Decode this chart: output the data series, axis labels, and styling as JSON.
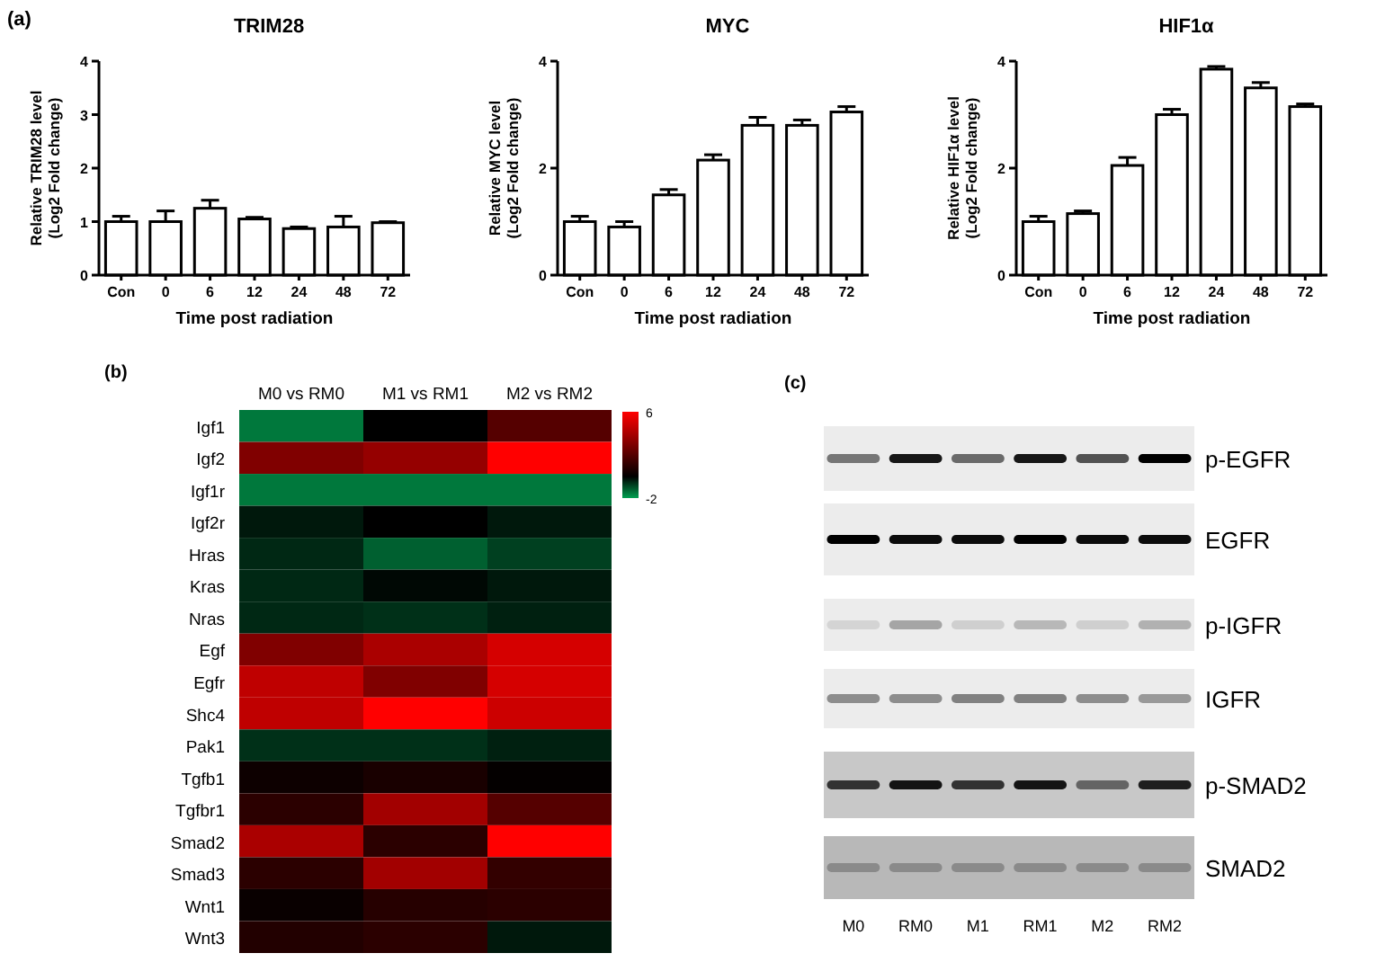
{
  "chart_data": [
    {
      "type": "bar",
      "title": "TRIM28",
      "xlabel": "Time post radiation",
      "ylabel": "Relative TRIM28 level\n(Log2 Fold change)",
      "annotations": [
        "(a)"
      ],
      "categories": [
        "Con",
        "0",
        "6",
        "12",
        "24",
        "48",
        "72"
      ],
      "values": [
        1.0,
        1.0,
        1.25,
        1.05,
        0.87,
        0.9,
        0.98
      ],
      "errors": [
        0.1,
        0.2,
        0.15,
        0.03,
        0.03,
        0.2,
        0.02
      ],
      "color": "#ffffff",
      "ylim": [
        0,
        4
      ],
      "yticks": [
        0,
        1,
        2,
        3,
        4
      ],
      "grid": false
    },
    {
      "type": "bar",
      "title": "MYC",
      "xlabel": "Time post radiation",
      "ylabel": "Relative MYC level\n(Log2 Fold change)",
      "categories": [
        "Con",
        "0",
        "6",
        "12",
        "24",
        "48",
        "72"
      ],
      "values": [
        1.0,
        0.9,
        1.5,
        2.15,
        2.8,
        2.8,
        3.05
      ],
      "errors": [
        0.1,
        0.1,
        0.1,
        0.1,
        0.15,
        0.1,
        0.1
      ],
      "color": "#ffffff",
      "ylim": [
        0,
        4
      ],
      "yticks": [
        0,
        2,
        4
      ],
      "grid": false
    },
    {
      "type": "bar",
      "title": "HIF1α",
      "xlabel": "Time post radiation",
      "ylabel": "Relative HIF1α level\n(Log2 Fold change)",
      "categories": [
        "Con",
        "0",
        "6",
        "12",
        "24",
        "48",
        "72"
      ],
      "values": [
        1.0,
        1.15,
        2.05,
        3.0,
        3.85,
        3.5,
        3.15
      ],
      "errors": [
        0.1,
        0.05,
        0.15,
        0.1,
        0.05,
        0.1,
        0.05
      ],
      "color": "#ffffff",
      "ylim": [
        0,
        4
      ],
      "yticks": [
        0,
        2,
        4
      ],
      "grid": false
    },
    {
      "type": "heatmap",
      "annotations": [
        "(b)"
      ],
      "categories": [
        "M0 vs RM0",
        "M1 vs RM1",
        "M2 vs RM2"
      ],
      "y_categories": [
        "Igf1",
        "Igf2",
        "Igf1r",
        "Igf2r",
        "Hras",
        "Kras",
        "Nras",
        "Egf",
        "Egfr",
        "Shc4",
        "Pak1",
        "Tgfb1",
        "Tgfbr1",
        "Smad2",
        "Smad3",
        "Wnt1",
        "Wnt3"
      ],
      "cells": [
        [
          -1.5,
          0,
          2
        ],
        [
          3,
          3.5,
          6
        ],
        [
          -1.5,
          -1.5,
          -1.5
        ],
        [
          -0.3,
          0,
          -0.3
        ],
        [
          -0.5,
          -1.2,
          -0.8
        ],
        [
          -0.5,
          -0.1,
          -0.3
        ],
        [
          -0.5,
          -0.6,
          -0.4
        ],
        [
          3,
          4,
          5
        ],
        [
          4.5,
          3,
          5
        ],
        [
          4.5,
          6,
          4.8
        ],
        [
          -0.6,
          -0.6,
          -0.4
        ],
        [
          0.3,
          0.6,
          0.1
        ],
        [
          1,
          3.8,
          2
        ],
        [
          4,
          1,
          6
        ],
        [
          1,
          3.8,
          1.2
        ],
        [
          0.2,
          0.9,
          1
        ],
        [
          0.8,
          1,
          -0.3
        ]
      ],
      "clim": [
        -2,
        6
      ],
      "cticks": [
        -2,
        6
      ]
    },
    {
      "type": "other",
      "annotations": [
        "(c)"
      ],
      "categories": [
        "M0",
        "RM0",
        "M1",
        "RM1",
        "M2",
        "RM2"
      ],
      "y_categories": [
        "p-EGFR",
        "EGFR",
        "p-IGFR",
        "IGFR",
        "p-SMAD2",
        "SMAD2"
      ]
    }
  ]
}
